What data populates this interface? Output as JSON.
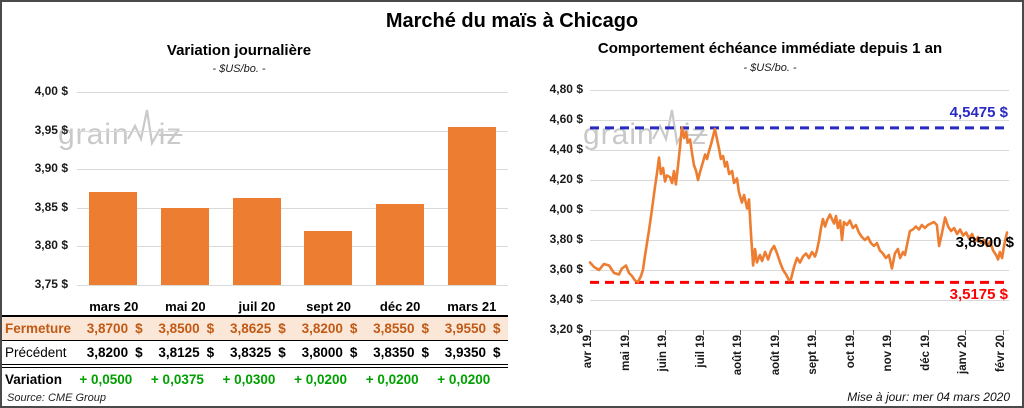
{
  "page": {
    "title": "Marché du maïs à Chicago",
    "source": "Source: CME Group",
    "updated": "Mise à jour: mer 04 mars 2020",
    "watermark": {
      "part1": "grain",
      "part2": "iz"
    }
  },
  "table": {
    "columns": [
      "mars 20",
      "mai 20",
      "juil 20",
      "sept 20",
      "déc 20",
      "mars 21"
    ],
    "fermeture_bg": "#FBE7D8",
    "fermeture_color": "#C05A15",
    "variation_color": "#00A000",
    "rows": [
      {
        "id": "fermeture",
        "label": "Fermeture",
        "currency": "$",
        "values": [
          "3,8700",
          "3,8500",
          "3,8625",
          "3,8200",
          "3,8550",
          "3,9550"
        ]
      },
      {
        "id": "precedent",
        "label": "Précédent",
        "currency": "$",
        "values": [
          "3,8200",
          "3,8125",
          "3,8325",
          "3,8000",
          "3,8350",
          "3,9350"
        ]
      },
      {
        "id": "variation",
        "label": "Variation",
        "values": [
          "+ 0,0500",
          "+ 0,0375",
          "+ 0,0300",
          "+ 0,0200",
          "+ 0,0200",
          "+ 0,0200"
        ]
      }
    ]
  },
  "chart_data": [
    {
      "type": "bar",
      "title": "Variation journalière",
      "subtitle": "- $US/bo. -",
      "categories": [
        "mars 20",
        "mai 20",
        "juil 20",
        "sept 20",
        "déc 20",
        "mars 21"
      ],
      "values": [
        3.87,
        3.85,
        3.8625,
        3.82,
        3.855,
        3.955
      ],
      "ylim": [
        3.75,
        4.0
      ],
      "ytick_values": [
        4.0,
        3.95,
        3.9,
        3.85,
        3.8,
        3.75
      ],
      "ytick_labels": [
        "4,00 $",
        "3,95 $",
        "3,90 $",
        "3,85 $",
        "3,80 $",
        "3,75 $"
      ],
      "bar_color": "#ED7D31"
    },
    {
      "type": "line",
      "title": "Comportement échéance immédiate depuis 1 an",
      "subtitle": "- $US/bo. -",
      "x_labels": [
        "avr 19",
        "mai 19",
        "juin 19",
        "juil 19",
        "août 19",
        "août 19",
        "sept 19",
        "oct 19",
        "nov 19",
        "déc 19",
        "janv 20",
        "févr 20"
      ],
      "ylim": [
        3.2,
        4.8
      ],
      "ytick_values": [
        4.8,
        4.6,
        4.4,
        4.2,
        4.0,
        3.8,
        3.6,
        3.4,
        3.2
      ],
      "ytick_labels": [
        "4,80 $",
        "4,60 $",
        "4,40 $",
        "4,20 $",
        "4,00 $",
        "3,80 $",
        "3,60 $",
        "3,40 $",
        "3,20 $"
      ],
      "line_color": "#ED7D31",
      "max_line": {
        "value": 4.5475,
        "label": "4,5475 $",
        "color": "#2A2AC2"
      },
      "min_line": {
        "value": 3.5175,
        "label": "3,5175 $",
        "color": "#FF0000"
      },
      "last_label": {
        "value": 3.85,
        "label": "3,8500 $",
        "color": "#000000"
      },
      "points": [
        [
          0,
          3.65
        ],
        [
          0.11,
          3.62
        ],
        [
          0.24,
          3.6
        ],
        [
          0.37,
          3.64
        ],
        [
          0.51,
          3.63
        ],
        [
          0.64,
          3.58
        ],
        [
          0.77,
          3.57
        ],
        [
          0.85,
          3.61
        ],
        [
          0.96,
          3.63
        ],
        [
          1.04,
          3.58
        ],
        [
          1.12,
          3.56
        ],
        [
          1.2,
          3.53
        ],
        [
          1.28,
          3.52
        ],
        [
          1.36,
          3.56
        ],
        [
          1.41,
          3.6
        ],
        [
          1.47,
          3.7
        ],
        [
          1.52,
          3.78
        ],
        [
          1.57,
          3.86
        ],
        [
          1.65,
          4.0
        ],
        [
          1.73,
          4.15
        ],
        [
          1.79,
          4.25
        ],
        [
          1.84,
          4.35
        ],
        [
          1.89,
          4.24
        ],
        [
          1.95,
          4.28
        ],
        [
          2.0,
          4.19
        ],
        [
          2.05,
          4.23
        ],
        [
          2.13,
          4.22
        ],
        [
          2.19,
          4.18
        ],
        [
          2.24,
          4.26
        ],
        [
          2.29,
          4.17
        ],
        [
          2.35,
          4.3
        ],
        [
          2.4,
          4.42
        ],
        [
          2.45,
          4.55
        ],
        [
          2.51,
          4.48
        ],
        [
          2.56,
          4.52
        ],
        [
          2.61,
          4.45
        ],
        [
          2.67,
          4.47
        ],
        [
          2.72,
          4.38
        ],
        [
          2.77,
          4.3
        ],
        [
          2.83,
          4.26
        ],
        [
          2.88,
          4.2
        ],
        [
          2.93,
          4.25
        ],
        [
          2.99,
          4.3
        ],
        [
          3.07,
          4.37
        ],
        [
          3.12,
          4.34
        ],
        [
          3.17,
          4.39
        ],
        [
          3.23,
          4.44
        ],
        [
          3.28,
          4.49
        ],
        [
          3.33,
          4.54
        ],
        [
          3.39,
          4.47
        ],
        [
          3.44,
          4.41
        ],
        [
          3.49,
          4.34
        ],
        [
          3.55,
          4.36
        ],
        [
          3.6,
          4.29
        ],
        [
          3.65,
          4.32
        ],
        [
          3.71,
          4.24
        ],
        [
          3.79,
          4.26
        ],
        [
          3.84,
          4.18
        ],
        [
          3.92,
          4.21
        ],
        [
          3.97,
          4.12
        ],
        [
          4.05,
          4.05
        ],
        [
          4.11,
          4.1
        ],
        [
          4.19,
          4.01
        ],
        [
          4.24,
          4.07
        ],
        [
          4.29,
          3.85
        ],
        [
          4.35,
          3.63
        ],
        [
          4.4,
          3.74
        ],
        [
          4.45,
          3.65
        ],
        [
          4.53,
          3.7
        ],
        [
          4.59,
          3.66
        ],
        [
          4.67,
          3.72
        ],
        [
          4.75,
          3.67
        ],
        [
          4.83,
          3.73
        ],
        [
          4.91,
          3.76
        ],
        [
          4.99,
          3.71
        ],
        [
          5.07,
          3.65
        ],
        [
          5.15,
          3.6
        ],
        [
          5.23,
          3.57
        ],
        [
          5.31,
          3.53
        ],
        [
          5.36,
          3.54
        ],
        [
          5.44,
          3.62
        ],
        [
          5.52,
          3.68
        ],
        [
          5.6,
          3.65
        ],
        [
          5.68,
          3.69
        ],
        [
          5.76,
          3.71
        ],
        [
          5.84,
          3.68
        ],
        [
          5.92,
          3.72
        ],
        [
          6.0,
          3.69
        ],
        [
          6.05,
          3.73
        ],
        [
          6.11,
          3.8
        ],
        [
          6.16,
          3.88
        ],
        [
          6.21,
          3.94
        ],
        [
          6.27,
          3.89
        ],
        [
          6.32,
          3.93
        ],
        [
          6.4,
          3.97
        ],
        [
          6.45,
          3.94
        ],
        [
          6.51,
          3.91
        ],
        [
          6.56,
          3.96
        ],
        [
          6.61,
          3.88
        ],
        [
          6.67,
          3.93
        ],
        [
          6.72,
          3.8
        ],
        [
          6.77,
          3.92
        ],
        [
          6.85,
          3.9
        ],
        [
          6.93,
          3.93
        ],
        [
          7.01,
          3.88
        ],
        [
          7.09,
          3.9
        ],
        [
          7.17,
          3.85
        ],
        [
          7.25,
          3.82
        ],
        [
          7.33,
          3.8
        ],
        [
          7.41,
          3.82
        ],
        [
          7.49,
          3.78
        ],
        [
          7.57,
          3.76
        ],
        [
          7.65,
          3.78
        ],
        [
          7.73,
          3.73
        ],
        [
          7.81,
          3.71
        ],
        [
          7.89,
          3.68
        ],
        [
          7.97,
          3.7
        ],
        [
          8.05,
          3.61
        ],
        [
          8.13,
          3.71
        ],
        [
          8.21,
          3.74
        ],
        [
          8.27,
          3.68
        ],
        [
          8.35,
          3.72
        ],
        [
          8.4,
          3.7
        ],
        [
          8.48,
          3.8
        ],
        [
          8.53,
          3.86
        ],
        [
          8.61,
          3.87
        ],
        [
          8.69,
          3.89
        ],
        [
          8.77,
          3.87
        ],
        [
          8.85,
          3.9
        ],
        [
          8.93,
          3.88
        ],
        [
          9.01,
          3.9
        ],
        [
          9.09,
          3.91
        ],
        [
          9.17,
          3.92
        ],
        [
          9.25,
          3.9
        ],
        [
          9.31,
          3.76
        ],
        [
          9.39,
          3.85
        ],
        [
          9.47,
          3.95
        ],
        [
          9.55,
          3.89
        ],
        [
          9.63,
          3.86
        ],
        [
          9.71,
          3.88
        ],
        [
          9.79,
          3.84
        ],
        [
          9.87,
          3.87
        ],
        [
          9.95,
          3.83
        ],
        [
          10.03,
          3.85
        ],
        [
          10.11,
          3.81
        ],
        [
          10.19,
          3.84
        ],
        [
          10.27,
          3.79
        ],
        [
          10.35,
          3.82
        ],
        [
          10.43,
          3.78
        ],
        [
          10.51,
          3.8
        ],
        [
          10.59,
          3.76
        ],
        [
          10.67,
          3.79
        ],
        [
          10.75,
          3.73
        ],
        [
          10.83,
          3.7
        ],
        [
          10.88,
          3.67
        ],
        [
          10.93,
          3.72
        ],
        [
          10.99,
          3.68
        ],
        [
          11.04,
          3.76
        ],
        [
          11.12,
          3.85
        ]
      ]
    }
  ]
}
